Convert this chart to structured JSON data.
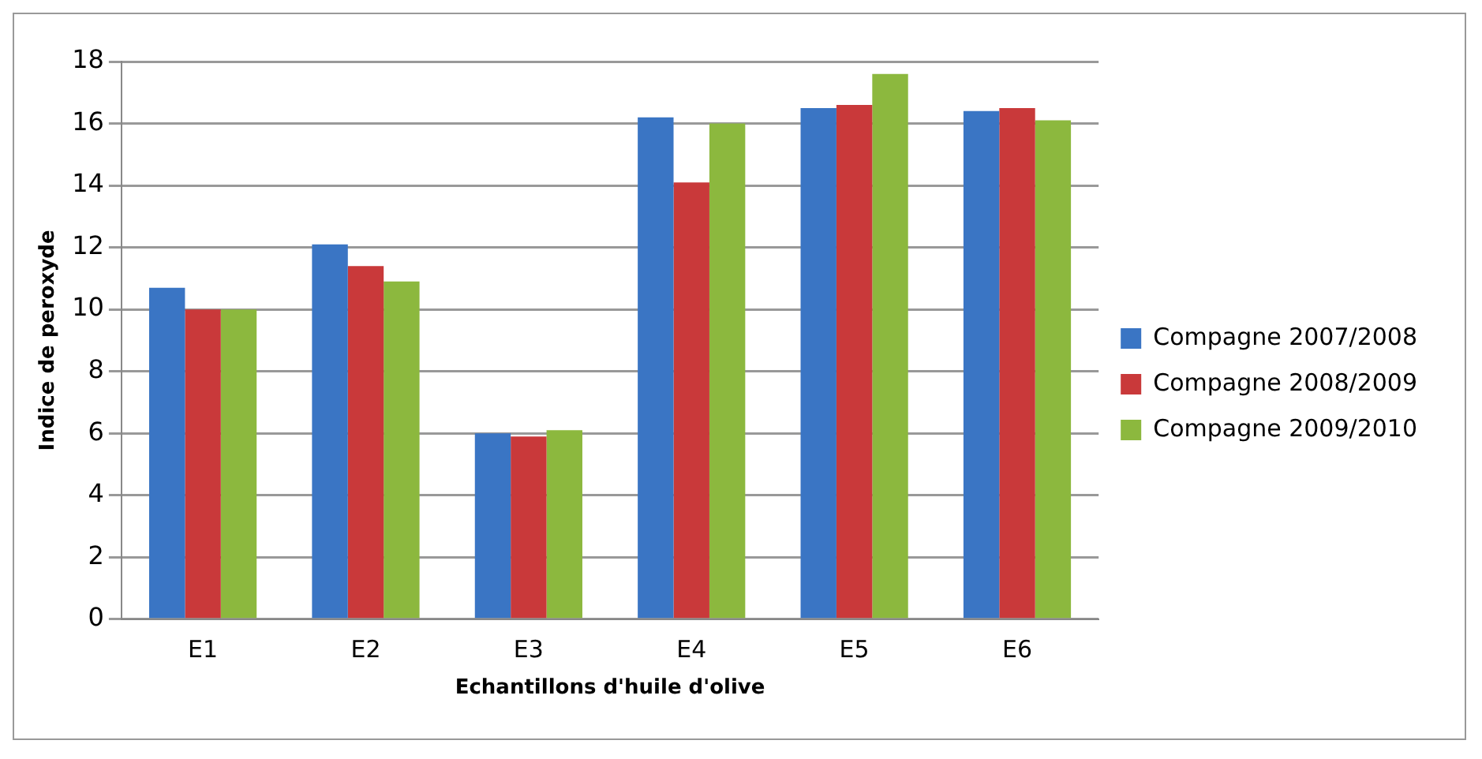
{
  "chart_data": {
    "type": "bar",
    "xlabel": "Echantillons d'huile d'olive",
    "ylabel": "Indice de peroxyde",
    "categories": [
      "E1",
      "E2",
      "E3",
      "E4",
      "E5",
      "E6"
    ],
    "series": [
      {
        "name": "Compagne 2007/2008",
        "color": "#3a75c4",
        "values": [
          10.7,
          12.1,
          6.0,
          16.2,
          16.5,
          16.4
        ]
      },
      {
        "name": "Compagne 2008/2009",
        "color": "#c9393a",
        "values": [
          10.0,
          11.4,
          5.9,
          14.1,
          16.6,
          16.5
        ]
      },
      {
        "name": "Compagne 2009/2010",
        "color": "#8cb83e",
        "values": [
          10.0,
          10.9,
          6.1,
          16.0,
          17.6,
          16.1
        ]
      }
    ],
    "ylim": [
      0,
      18
    ],
    "yticks": [
      0,
      2,
      4,
      6,
      8,
      10,
      12,
      14,
      16,
      18
    ],
    "grid": "y",
    "legend": "right"
  }
}
